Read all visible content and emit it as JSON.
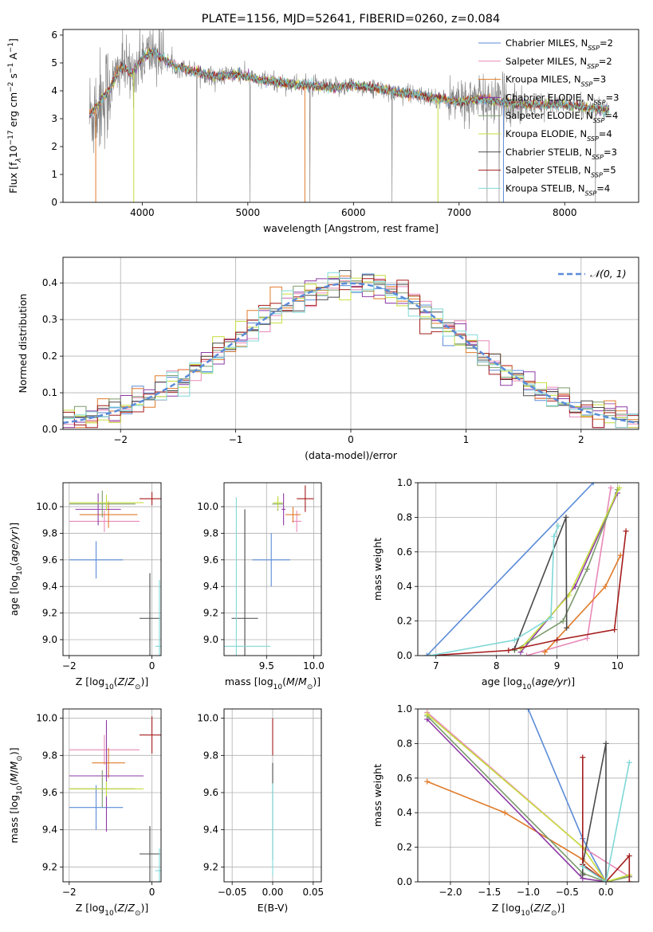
{
  "colors": {
    "chabrier_miles": "#5b8bd8",
    "salpeter_miles": "#e889b8",
    "kroupa_miles": "#e07b2a",
    "chabrier_elodie": "#8e3aa6",
    "salpeter_elodie": "#7a9a6b",
    "kroupa_elodie": "#c6de3d",
    "chabrier_stelib": "#4a4a4a",
    "salpeter_stelib": "#a51c1c",
    "kroupa_stelib": "#80d8d8",
    "data_spectrum": "#808080",
    "gaussian": "#5b8bd8"
  },
  "chart_data": [
    {
      "id": "spectrum",
      "type": "line",
      "title": "PLATE=1156, MJD=52641, FIBERID=0260, z=0.084",
      "xlabel": "wavelength [Angstrom, rest frame]",
      "ylabel": "Flux [f$_\\lambda$10$^{-17}$ erg cm$^{-2}$ s$^{-1}$ A$^{-1}$]",
      "xlim": [
        3250,
        8700
      ],
      "ylim": [
        0,
        6.2
      ],
      "xticks": [
        4000,
        5000,
        6000,
        7000,
        8000
      ],
      "yticks": [
        0,
        1,
        2,
        3,
        4,
        5,
        6
      ],
      "grid": false,
      "legend_position": "right",
      "legend": [
        {
          "label": "Chabrier MILES, N",
          "sub": "SSP",
          "eq": "=2"
        },
        {
          "label": "Salpeter MILES, N",
          "sub": "SSP",
          "eq": "=2"
        },
        {
          "label": "Kroupa MILES, N",
          "sub": "SSP",
          "eq": "=3"
        },
        {
          "label": "Chabrier ELODIE, N",
          "sub": "SSP",
          "eq": "=3"
        },
        {
          "label": "Salpeter ELODIE, N",
          "sub": "SSP",
          "eq": "=4"
        },
        {
          "label": "Kroupa ELODIE, N",
          "sub": "SSP",
          "eq": "=4"
        },
        {
          "label": "Chabrier STELIB, N",
          "sub": "SSP",
          "eq": "=3"
        },
        {
          "label": "Salpeter STELIB, N",
          "sub": "SSP",
          "eq": "=5"
        },
        {
          "label": "Kroupa STELIB, N",
          "sub": "SSP",
          "eq": "=4"
        }
      ],
      "continuum_x": [
        3500,
        3700,
        3800,
        3900,
        4000,
        4100,
        4300,
        4500,
        4700,
        4900,
        5100,
        5300,
        5500,
        5800,
        6000,
        6200,
        6500,
        6700,
        7000,
        7200,
        7400,
        7600,
        7800,
        8000,
        8200,
        8400
      ],
      "continuum_y": [
        3.1,
        4.1,
        4.9,
        4.6,
        5.2,
        5.4,
        4.9,
        4.7,
        4.5,
        4.6,
        4.4,
        4.3,
        4.2,
        4.1,
        4.2,
        4.1,
        3.9,
        3.8,
        3.6,
        3.7,
        3.6,
        3.5,
        3.5,
        3.5,
        3.4,
        3.3
      ]
    },
    {
      "id": "residuals",
      "type": "histogram",
      "xlabel": "(data-model)/error",
      "ylabel": "Normed distribution",
      "xlim": [
        -2.5,
        2.5
      ],
      "ylim": [
        0,
        0.47
      ],
      "xticks": [
        -2,
        -1,
        0,
        1,
        2
      ],
      "yticks": [
        0.0,
        0.1,
        0.2,
        0.3,
        0.4
      ],
      "grid": true,
      "legend_position": "top-right",
      "gaussian_label": "𝒩(0, 1)",
      "bin_width": 0.1
    },
    {
      "id": "age_vs_Z",
      "type": "scatter",
      "xlabel": "Z [log$_{10}$(Z/Z$_\\odot$)]",
      "ylabel": "age  [log$_{10}$(age/yr)]",
      "xlim": [
        -2.15,
        0.22
      ],
      "ylim": [
        8.88,
        10.18
      ],
      "xticks": [
        -2,
        0
      ],
      "yticks": [
        9.0,
        9.2,
        9.4,
        9.6,
        9.8,
        10.0
      ],
      "grid": true,
      "points": [
        {
          "model": "chabrier_miles",
          "x": -1.35,
          "xerr": 0.65,
          "y": 9.6,
          "yerr": 0.14
        },
        {
          "model": "salpeter_miles",
          "x": -1.15,
          "xerr": 0.85,
          "y": 9.89,
          "yerr": 0.08
        },
        {
          "model": "kroupa_miles",
          "x": -1.05,
          "xerr": 0.7,
          "y": 9.94,
          "yerr": 0.1
        },
        {
          "model": "chabrier_elodie",
          "x": -1.3,
          "xerr": 0.55,
          "y": 9.98,
          "yerr": 0.12
        },
        {
          "model": "salpeter_elodie",
          "x": -1.2,
          "xerr": 0.8,
          "y": 10.02,
          "yerr": 0.1
        },
        {
          "model": "kroupa_elodie",
          "x": -1.1,
          "xerr": 0.9,
          "y": 10.03,
          "yerr": 0.06
        },
        {
          "model": "chabrier_stelib",
          "x": -0.05,
          "xerr": 0.25,
          "y": 9.16,
          "yerr": 0.34
        },
        {
          "model": "salpeter_stelib",
          "x": 0.0,
          "xerr": 0.3,
          "y": 10.06,
          "yerr": 0.05
        },
        {
          "model": "kroupa_stelib",
          "x": 0.18,
          "xerr": 0.1,
          "y": 8.95,
          "yerr": 0.5
        }
      ]
    },
    {
      "id": "age_vs_mass",
      "type": "scatter",
      "xlabel": "mass [log$_{10}$(M/M$_\\odot$)]",
      "ylabel": "",
      "xlim": [
        9.05,
        10.08
      ],
      "ylim": [
        8.88,
        10.18
      ],
      "xticks": [
        9.5,
        10.0
      ],
      "yticks": [
        9.0,
        9.2,
        9.4,
        9.6,
        9.8,
        10.0
      ],
      "grid": true,
      "points": [
        {
          "model": "chabrier_miles",
          "x": 9.55,
          "xerr": 0.2,
          "y": 9.6,
          "yerr": 0.2
        },
        {
          "model": "salpeter_miles",
          "x": 9.82,
          "xerr": 0.05,
          "y": 9.89,
          "yerr": 0.08
        },
        {
          "model": "kroupa_miles",
          "x": 9.78,
          "xerr": 0.08,
          "y": 9.94,
          "yerr": 0.06
        },
        {
          "model": "chabrier_elodie",
          "x": 9.68,
          "xerr": 0.02,
          "y": 9.98,
          "yerr": 0.12
        },
        {
          "model": "salpeter_elodie",
          "x": 9.62,
          "xerr": 0.06,
          "y": 10.02,
          "yerr": 0.05
        },
        {
          "model": "kroupa_elodie",
          "x": 9.62,
          "xerr": 0.05,
          "y": 10.03,
          "yerr": 0.05
        },
        {
          "model": "chabrier_stelib",
          "x": 9.27,
          "xerr": 0.14,
          "y": 9.16,
          "yerr": 0.82
        },
        {
          "model": "salpeter_stelib",
          "x": 9.91,
          "xerr": 0.09,
          "y": 10.06,
          "yerr": 0.1
        },
        {
          "model": "kroupa_stelib",
          "x": 9.18,
          "xerr": 0.36,
          "y": 8.95,
          "yerr": 1.12
        }
      ]
    },
    {
      "id": "massweight_vs_age",
      "type": "line",
      "xlabel": "age  [log$_{10}$(age/yr)]",
      "ylabel": "mass weight",
      "xlim": [
        6.7,
        10.35
      ],
      "ylim": [
        0,
        1.0
      ],
      "xticks": [
        7,
        8,
        9,
        10
      ],
      "yticks": [
        0.0,
        0.2,
        0.4,
        0.6,
        0.8,
        1.0
      ],
      "grid": true,
      "series": [
        {
          "model": "chabrier_miles",
          "x": [
            6.85,
            9.6
          ],
          "y": [
            0.0,
            1.0
          ]
        },
        {
          "model": "salpeter_miles",
          "x": [
            8.5,
            9.5,
            9.89
          ],
          "y": [
            0.0,
            0.1,
            0.97
          ]
        },
        {
          "model": "kroupa_miles",
          "x": [
            8.8,
            9.8,
            10.05
          ],
          "y": [
            0.02,
            0.4,
            0.58
          ]
        },
        {
          "model": "chabrier_elodie",
          "x": [
            8.4,
            9.3,
            10.0
          ],
          "y": [
            0.02,
            0.4,
            0.94
          ]
        },
        {
          "model": "salpeter_elodie",
          "x": [
            8.3,
            9.1,
            9.5,
            10.0
          ],
          "y": [
            0.03,
            0.2,
            0.5,
            0.96
          ]
        },
        {
          "model": "kroupa_elodie",
          "x": [
            8.4,
            9.2,
            10.03
          ],
          "y": [
            0.04,
            0.35,
            0.97
          ]
        },
        {
          "model": "chabrier_stelib",
          "x": [
            8.3,
            9.15,
            9.16
          ],
          "y": [
            0.04,
            0.8,
            0.16
          ]
        },
        {
          "model": "salpeter_stelib",
          "x": [
            6.9,
            8.2,
            9.0,
            9.95,
            10.14
          ],
          "y": [
            0.0,
            0.03,
            0.09,
            0.15,
            0.72
          ]
        },
        {
          "model": "kroupa_stelib",
          "x": [
            6.9,
            8.3,
            8.9,
            8.95,
            9.02
          ],
          "y": [
            0.0,
            0.09,
            0.22,
            0.69,
            0.75
          ]
        }
      ]
    },
    {
      "id": "mass_vs_Z",
      "type": "scatter",
      "xlabel": "Z [log$_{10}$(Z/Z$_\\odot$)]",
      "ylabel": "mass [log$_{10}$(M/M$_\\odot$)]",
      "xlim": [
        -2.15,
        0.22
      ],
      "ylim": [
        9.12,
        10.05
      ],
      "xticks": [
        -2,
        0
      ],
      "yticks": [
        9.2,
        9.4,
        9.6,
        9.8,
        10.0
      ],
      "grid": true,
      "points": [
        {
          "model": "chabrier_miles",
          "x": -1.35,
          "xerr": 0.65,
          "y": 9.52,
          "yerr": 0.12
        },
        {
          "model": "salpeter_miles",
          "x": -1.15,
          "xerr": 0.85,
          "y": 9.83,
          "yerr": 0.08
        },
        {
          "model": "kroupa_miles",
          "x": -1.05,
          "xerr": 0.4,
          "y": 9.76,
          "yerr": 0.08
        },
        {
          "model": "chabrier_elodie",
          "x": -1.1,
          "xerr": 0.9,
          "y": 9.69,
          "yerr": 0.3
        },
        {
          "model": "salpeter_elodie",
          "x": -1.2,
          "xerr": 0.8,
          "y": 9.62,
          "yerr": 0.1
        },
        {
          "model": "kroupa_elodie",
          "x": -1.1,
          "xerr": 0.9,
          "y": 9.62,
          "yerr": 0.04
        },
        {
          "model": "chabrier_stelib",
          "x": -0.05,
          "xerr": 0.25,
          "y": 9.27,
          "yerr": 0.15
        },
        {
          "model": "salpeter_stelib",
          "x": 0.0,
          "xerr": 0.3,
          "y": 9.91,
          "yerr": 0.1
        },
        {
          "model": "kroupa_stelib",
          "x": 0.18,
          "xerr": 0.1,
          "y": 9.18,
          "yerr": 0.12
        }
      ]
    },
    {
      "id": "mass_vs_EBV",
      "type": "scatter",
      "xlabel": "E(B-V)",
      "ylabel": "",
      "xlim": [
        -0.06,
        0.06
      ],
      "ylim": [
        9.12,
        10.05
      ],
      "xticks": [
        -0.05,
        0.0,
        0.05
      ],
      "xtick_labels": [
        "−0.05",
        "0.00",
        "0.05"
      ],
      "yticks": [
        9.2,
        9.4,
        9.6,
        9.8,
        10.0
      ],
      "grid": true,
      "points": [
        {
          "model": "salpeter_stelib",
          "x": 0.0,
          "y": 9.9,
          "yerr": 0.1
        },
        {
          "model": "chabrier_stelib",
          "x": 0.0,
          "y": 9.5,
          "yerr": 0.26
        },
        {
          "model": "kroupa_stelib",
          "x": 0.0,
          "y": 9.4,
          "yerr": 0.25
        }
      ]
    },
    {
      "id": "massweight_vs_Z",
      "type": "line",
      "xlabel": "Z [log$_{10}$(Z/Z$_\\odot$)]",
      "ylabel": "mass weight",
      "xlim": [
        -2.42,
        0.42
      ],
      "ylim": [
        0,
        1.0
      ],
      "xticks": [
        -2.0,
        -1.5,
        -1.0,
        -0.5,
        0.0
      ],
      "xtick_labels": [
        "−2.0",
        "−1.5",
        "−1.0",
        "−0.5",
        "0.0"
      ],
      "yticks": [
        0.0,
        0.2,
        0.4,
        0.6,
        0.8,
        1.0
      ],
      "grid": true,
      "series": [
        {
          "model": "chabrier_miles",
          "x": [
            -1.0,
            -0.3,
            0.0
          ],
          "y": [
            1.0,
            0.25,
            0.0
          ]
        },
        {
          "model": "salpeter_miles",
          "x": [
            -2.3,
            -0.3,
            0.3
          ],
          "y": [
            0.98,
            0.2,
            0.03
          ]
        },
        {
          "model": "kroupa_miles",
          "x": [
            -2.3,
            -1.3,
            -0.3,
            0.0,
            0.3
          ],
          "y": [
            0.58,
            0.4,
            0.13,
            0.0,
            0.03
          ]
        },
        {
          "model": "chabrier_elodie",
          "x": [
            -2.3,
            -0.3,
            0.0,
            0.3
          ],
          "y": [
            0.94,
            0.02,
            0.0,
            0.03
          ]
        },
        {
          "model": "salpeter_elodie",
          "x": [
            -2.3,
            -0.3,
            0.0,
            0.3
          ],
          "y": [
            0.96,
            0.05,
            0.0,
            0.03
          ]
        },
        {
          "model": "kroupa_elodie",
          "x": [
            -2.3,
            -0.3,
            0.0,
            0.3
          ],
          "y": [
            0.97,
            0.2,
            0.0,
            0.04
          ]
        },
        {
          "model": "chabrier_stelib",
          "x": [
            -0.3,
            -0.3,
            0.0,
            0.0
          ],
          "y": [
            0.04,
            0.1,
            0.8,
            0.0
          ]
        },
        {
          "model": "salpeter_stelib",
          "x": [
            -0.3,
            -0.3,
            0.0,
            0.3,
            0.3
          ],
          "y": [
            0.72,
            0.1,
            0.0,
            0.15,
            0.0
          ]
        },
        {
          "model": "kroupa_stelib",
          "x": [
            -0.3,
            0.0,
            0.3
          ],
          "y": [
            0.09,
            0.0,
            0.69
          ]
        }
      ]
    }
  ]
}
